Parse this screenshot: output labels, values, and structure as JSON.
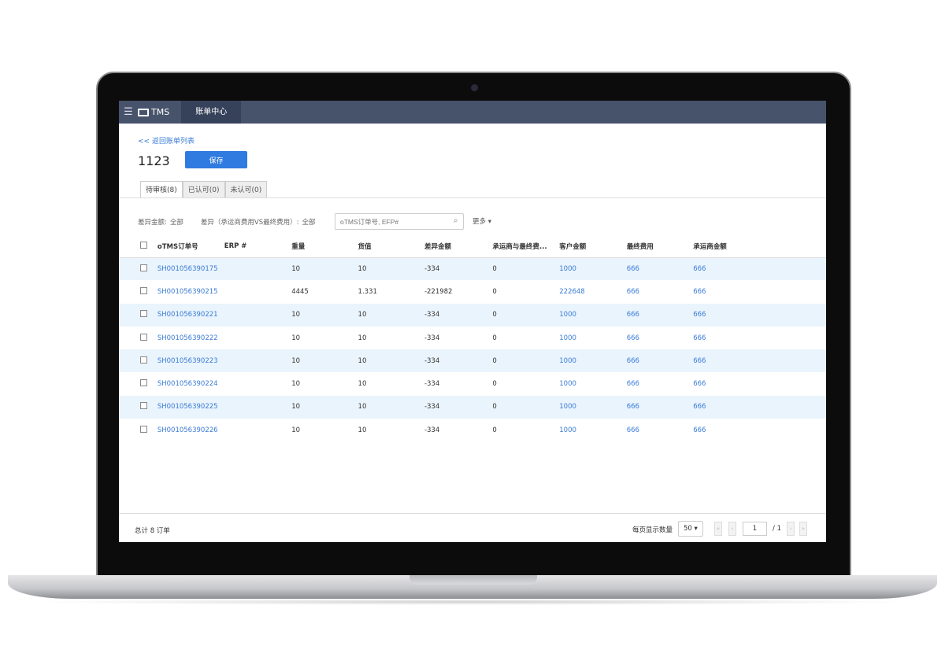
{
  "nav": {
    "menu_icon": "hamburger-icon",
    "logo": "TMS",
    "tab": "账单中心"
  },
  "back_link": "<< 返回账单列表",
  "title": "1123",
  "save_label": "保存",
  "tabs": [
    {
      "label": "待审核(8)",
      "active": true
    },
    {
      "label": "已认可(0)"
    },
    {
      "label": "未认可(0)"
    }
  ],
  "filters": {
    "diff_amount_label": "差异金额:",
    "diff_amount_value": "全部",
    "diff_label": "差异（承运商费用VS最终费用）:",
    "diff_value": "全部",
    "search_placeholder": "oTMS订单号, EFP#",
    "more": "更多 ▾"
  },
  "table": {
    "headers": [
      "oTMS订单号",
      "ERP #",
      "重量",
      "货值",
      "差异金额",
      "承运商与最终费...",
      "客户金额",
      "最终费用",
      "承运商金额"
    ],
    "rows": [
      [
        "SH001056390175",
        "",
        "10",
        "10",
        "-334",
        "0",
        "1000",
        "666",
        "666"
      ],
      [
        "SH001056390215",
        "",
        "4445",
        "1.331",
        "-221982",
        "0",
        "222648",
        "666",
        "666"
      ],
      [
        "SH001056390221",
        "",
        "10",
        "10",
        "-334",
        "0",
        "1000",
        "666",
        "666"
      ],
      [
        "SH001056390222",
        "",
        "10",
        "10",
        "-334",
        "0",
        "1000",
        "666",
        "666"
      ],
      [
        "SH001056390223",
        "",
        "10",
        "10",
        "-334",
        "0",
        "1000",
        "666",
        "666"
      ],
      [
        "SH001056390224",
        "",
        "10",
        "10",
        "-334",
        "0",
        "1000",
        "666",
        "666"
      ],
      [
        "SH001056390225",
        "",
        "10",
        "10",
        "-334",
        "0",
        "1000",
        "666",
        "666"
      ],
      [
        "SH001056390226",
        "",
        "10",
        "10",
        "-334",
        "0",
        "1000",
        "666",
        "666"
      ]
    ]
  },
  "footer": {
    "total": "总计 8 订单",
    "per_page_label": "每页显示数量",
    "per_page": "50 ▾",
    "page": "1",
    "pages": "/ 1"
  },
  "colors": {
    "nav": "#47536b",
    "accent": "#2f7be0",
    "row_alt": "#eaf4fd",
    "link": "#3a7bd5"
  }
}
